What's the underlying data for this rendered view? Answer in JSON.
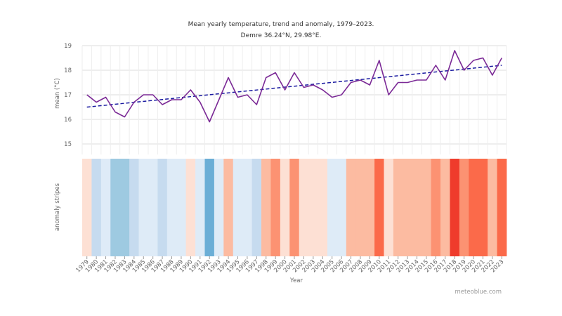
{
  "chart_data": {
    "type": "line",
    "title": "Mean yearly temperature, trend and anomaly, 1979–2023.",
    "subtitle": "Demre 36.24°N, 29.98°E.",
    "xlabel": "Year",
    "ylabel": "mean (°C)",
    "stripes_label": "anomaly stripes",
    "ylim": [
      15,
      19
    ],
    "yticks": [
      15,
      16,
      17,
      18,
      19
    ],
    "grid": true,
    "years": [
      1979,
      1980,
      1981,
      1982,
      1983,
      1984,
      1985,
      1986,
      1987,
      1988,
      1989,
      1990,
      1991,
      1992,
      1993,
      1994,
      1995,
      1996,
      1997,
      1998,
      1999,
      2000,
      2001,
      2002,
      2003,
      2004,
      2005,
      2006,
      2007,
      2008,
      2009,
      2010,
      2011,
      2012,
      2013,
      2014,
      2015,
      2016,
      2017,
      2018,
      2019,
      2020,
      2021,
      2022,
      2023
    ],
    "series": [
      {
        "kind": "temperature",
        "color": "#7b2a96",
        "values": [
          17.0,
          16.7,
          16.9,
          16.3,
          16.1,
          16.7,
          17.0,
          17.0,
          16.6,
          16.8,
          16.8,
          17.2,
          16.7,
          15.9,
          16.8,
          17.7,
          16.9,
          17.0,
          16.6,
          17.7,
          17.9,
          17.2,
          17.9,
          17.3,
          17.4,
          17.2,
          16.9,
          17.0,
          17.5,
          17.6,
          17.4,
          18.4,
          17.0,
          17.5,
          17.5,
          17.6,
          17.6,
          18.2,
          17.6,
          18.8,
          18.0,
          18.4,
          18.5,
          17.8,
          18.5
        ]
      },
      {
        "kind": "trend",
        "color": "#1a1aa0",
        "values": [
          16.5,
          18.2
        ]
      }
    ],
    "anomaly_stripes": [
      "#fde0d4",
      "#c6dbef",
      "#deebf7",
      "#9ecae1",
      "#9ecae1",
      "#c6dbef",
      "#deebf7",
      "#deebf7",
      "#c6dbef",
      "#deebf7",
      "#deebf7",
      "#fde0d4",
      "#deebf7",
      "#6baed6",
      "#deebf7",
      "#fcbba1",
      "#deebf7",
      "#deebf7",
      "#c6dbef",
      "#fcbba1",
      "#fc9272",
      "#fde0d4",
      "#fc9272",
      "#fde0d4",
      "#fde0d4",
      "#fde0d4",
      "#deebf7",
      "#deebf7",
      "#fcbba1",
      "#fcbba1",
      "#fcbba1",
      "#fb6a4a",
      "#fde0d4",
      "#fcbba1",
      "#fcbba1",
      "#fcbba1",
      "#fcbba1",
      "#fc9272",
      "#fcbba1",
      "#ef3b2c",
      "#fc9272",
      "#fb6a4a",
      "#fb6a4a",
      "#fcbba1",
      "#fb6a4a"
    ]
  },
  "footer": {
    "credit": "meteoblue.com"
  }
}
